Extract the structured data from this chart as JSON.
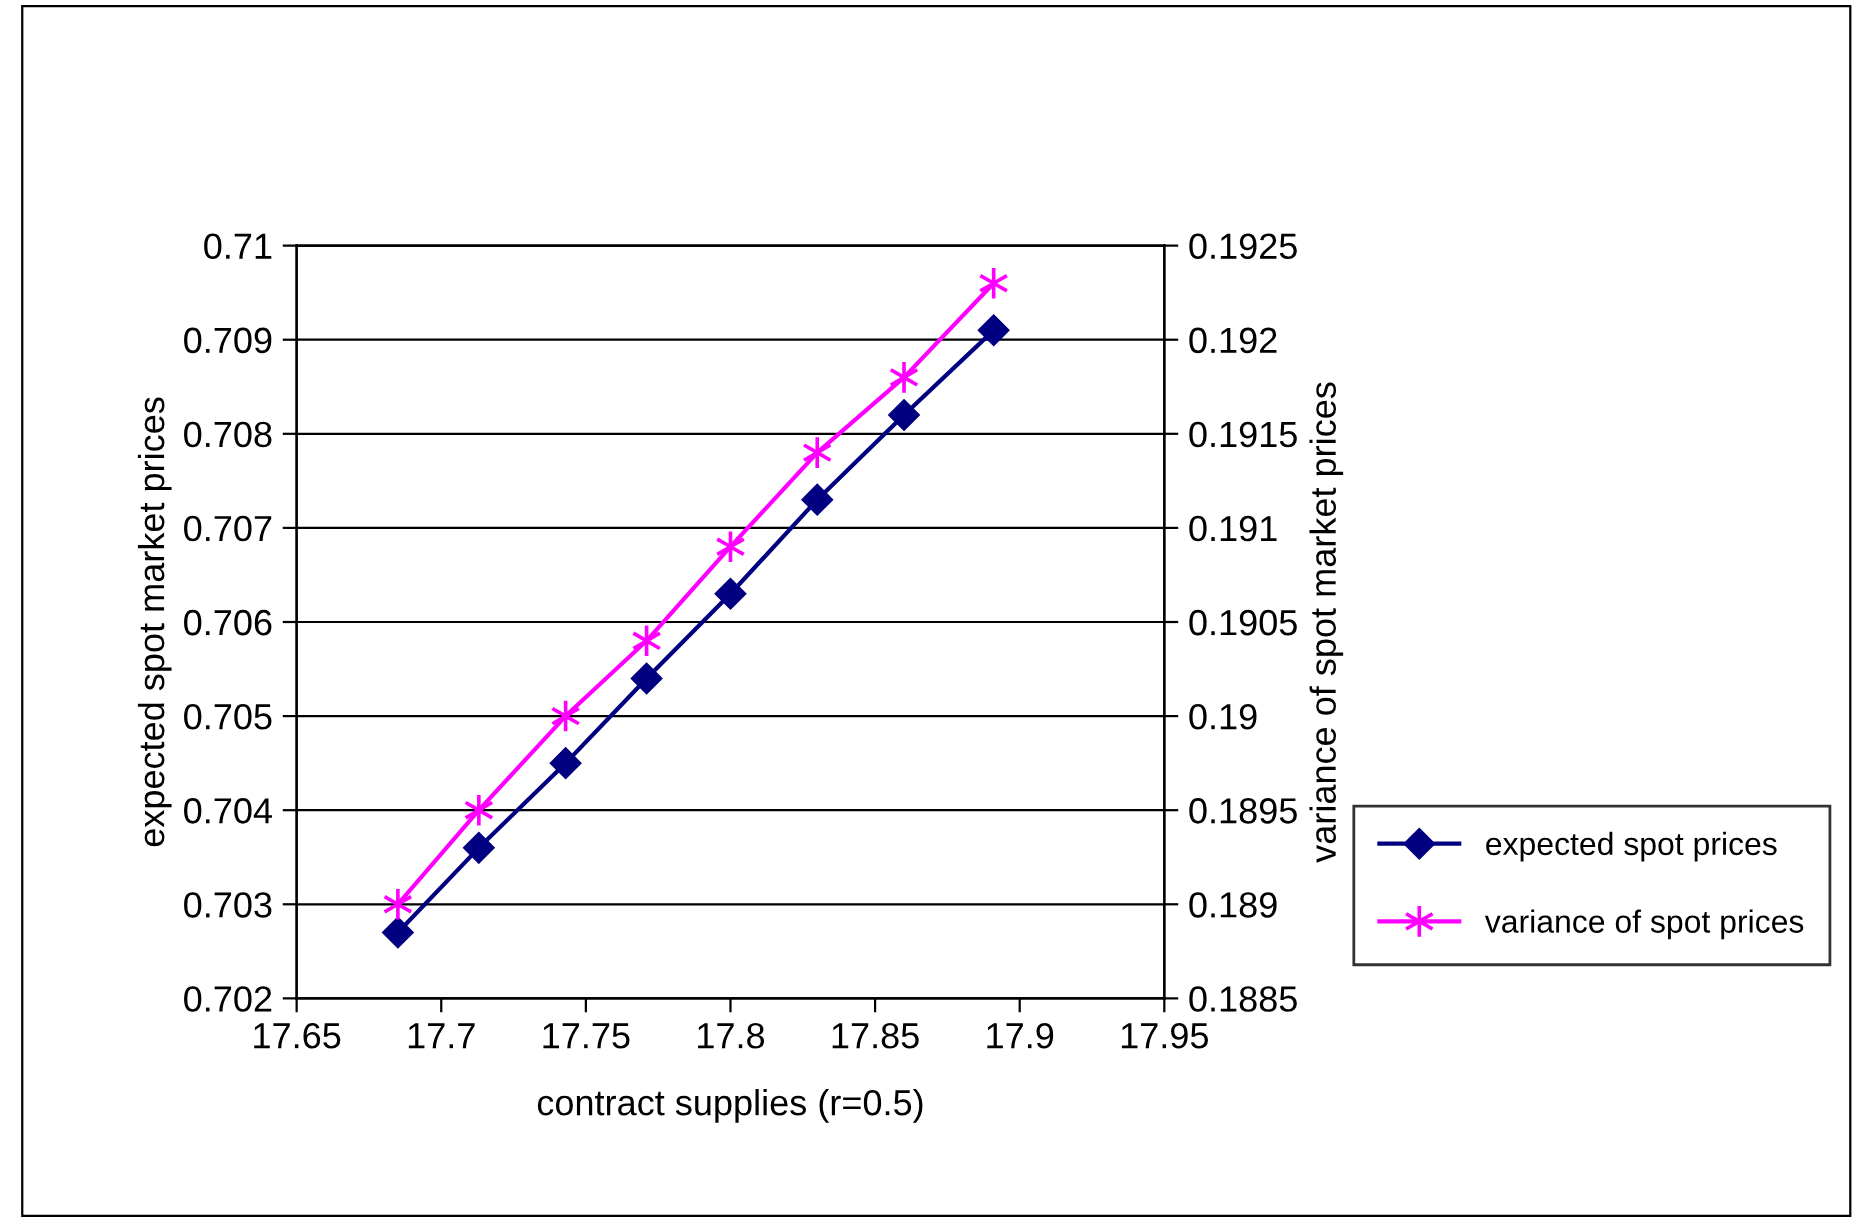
{
  "chart_data": {
    "type": "line",
    "xlabel": "contract supplies (r=0.5)",
    "ylabel": "expected spot market prices",
    "y2label": "variance of spot market prices",
    "x": [
      17.685,
      17.713,
      17.743,
      17.771,
      17.8,
      17.83,
      17.86,
      17.891
    ],
    "series": [
      {
        "name": "expected spot prices",
        "color": "#000080",
        "marker": "diamond",
        "values": [
          0.7027,
          0.7036,
          0.7045,
          0.7054,
          0.7063,
          0.7073,
          0.7082,
          0.7091
        ]
      },
      {
        "name": "variance of spot prices",
        "color": "#ff00ff",
        "marker": "cross",
        "axis": "y2",
        "values": [
          0.189,
          0.1895,
          0.19,
          0.1904,
          0.1909,
          0.1914,
          0.1918,
          0.1923
        ]
      }
    ],
    "xlim": [
      17.65,
      17.95
    ],
    "xticks": [
      17.65,
      17.7,
      17.75,
      17.8,
      17.85,
      17.9,
      17.95
    ],
    "ylim": [
      0.702,
      0.71
    ],
    "yticks": [
      0.702,
      0.703,
      0.704,
      0.705,
      0.706,
      0.707,
      0.708,
      0.709,
      0.71
    ],
    "y2lim": [
      0.1885,
      0.1925
    ],
    "y2ticks": [
      0.1885,
      0.189,
      0.1895,
      0.19,
      0.1905,
      0.191,
      0.1915,
      0.192,
      0.1925
    ],
    "grid": "y",
    "legend": "right"
  }
}
